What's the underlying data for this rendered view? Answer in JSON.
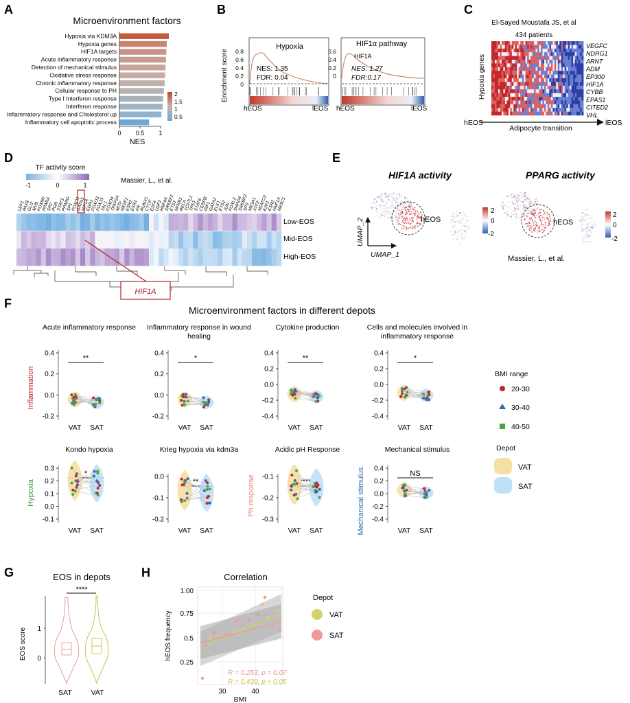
{
  "panel_letters": [
    "A",
    "B",
    "C",
    "D",
    "E",
    "F",
    "G",
    "H"
  ],
  "A": {
    "title": "Microenvironment factors",
    "xlabel": "NES",
    "legend_ticks": [
      "2",
      "1.5",
      "1",
      "0.5"
    ]
  },
  "B": {
    "ylabel": "Enrichment score",
    "left": {
      "title": "Hypoxia",
      "nes": "NES: 1.35",
      "fdr": "FDR: 0.04",
      "x_left": "hEOS",
      "x_right": "lEOS"
    },
    "right": {
      "title": "HIF1α pathway",
      "sub": "HIF1A",
      "nes": "NES: 1.27",
      "fdr": "FDR:0.17",
      "x_left": "hEOS",
      "x_right": "lEOS"
    }
  },
  "C": {
    "title": "El-Sayed Moustafa JS, et al",
    "subtitle": "434 patients",
    "ylabel": "Hypoxia genes",
    "genes": [
      "VEGFC",
      "NDRG1",
      "ARNT",
      "ADM",
      "EP300",
      "HIF1A",
      "CYBB",
      "EPAS1",
      "CITED2",
      "VHL"
    ],
    "x_left": "hEOS",
    "x_mid": "Adipocyte transition",
    "x_right": "lEOS"
  },
  "D": {
    "legend_title": "TF activity score",
    "legend_ticks": [
      "-1",
      "0",
      "1"
    ],
    "citation": "Massier, L., et al.",
    "tfs": [
      "LEF1",
      "PAX8",
      "GLI2",
      "MYB",
      "FOXM1",
      "PPARA",
      "SP2",
      "PGR",
      "STAT3",
      "PPARG",
      "SP1",
      "FOXO1",
      "GATA3",
      "HIF1A",
      "EGR1",
      "FOXO3",
      "FOXJ3",
      "TAL1",
      "FOXO4",
      "TFAP2A",
      "MITF",
      "NR2F1",
      "ESR2",
      "ESR1",
      "AR",
      "RUNX1",
      "CTCF",
      "E2F4",
      "USF2",
      "HNF4A",
      "SREBF1",
      "ETS1",
      "NFKB1",
      "RELA",
      "TCF7L2",
      "TP53",
      "STAT6",
      "CEBPB",
      "IRF1",
      "GATA2",
      "ELK1",
      "ETS2",
      "JUN",
      "FOXL2",
      "SMAD4",
      "SREBF2",
      "SP3",
      "NR3A1",
      "ATF2",
      "NFATC2",
      "E2F1",
      "ESR2",
      "HNF1A",
      "NR3C1"
    ],
    "rows": [
      "Low-EOS",
      "Mid-EOS",
      "High-EOS"
    ],
    "callout": "HIF1A"
  },
  "E": {
    "left_title": "HIF1A activity",
    "right_title": "PPARG activity",
    "cluster_label": "hEOS",
    "scale_ticks": [
      "2",
      "0",
      "-2"
    ],
    "axis_x": "UMAP_1",
    "axis_y": "UMAP_2",
    "citation": "Massier, L., et al."
  },
  "F": {
    "title": "Microenvironment factors in different depots",
    "row1_ylabel": "Inflammation",
    "row2_ylabels": [
      "Hypoxia",
      "Ph response",
      "Mechanical stimulus"
    ],
    "x_categories": [
      "VAT",
      "SAT"
    ],
    "plots": [
      {
        "title": [
          "Acute inflammatory response"
        ],
        "sig": "**",
        "ticks": [
          "0.4",
          "0.2",
          "0.0",
          "-0.2"
        ]
      },
      {
        "title": [
          "Inflammatory response in wound",
          "healing"
        ],
        "sig": "*",
        "ticks": [
          "0.4",
          "0.2",
          "0.0",
          "-0.2"
        ]
      },
      {
        "title": [
          "Cytokine production"
        ],
        "sig": "**",
        "ticks": [
          "0.4",
          "0.2",
          "0.0",
          "-0.2",
          "-0.4"
        ]
      },
      {
        "title": [
          "Cells and molecules involved in",
          "inflammatory response"
        ],
        "sig": "*",
        "ticks": [
          "0.4",
          "0.2",
          "0.0",
          "-0.2",
          "-0.4"
        ]
      },
      {
        "title": [
          "Kondo hypoxia"
        ],
        "sig": "*",
        "ticks": [
          "0.3",
          "0.2",
          "0.1",
          "0.0",
          "-0.1"
        ]
      },
      {
        "title": [
          "Krieg hypoxia via kdm3a"
        ],
        "sig": "**",
        "ticks": [
          "0.0",
          "-0.1",
          "-0.2"
        ]
      },
      {
        "title": [
          "Acidic pH Response"
        ],
        "sig": "****",
        "ticks": [
          "-0.1",
          "-0.2",
          "-0.3"
        ]
      },
      {
        "title": [
          "Mechanical stimulus"
        ],
        "sig": "NS",
        "ticks": [
          "0.4",
          "0.2",
          "0.0",
          "-0.2",
          "-0.4"
        ]
      }
    ],
    "legend_bmi_title": "BMI range",
    "legend_bmi": [
      "20-30",
      "30-40",
      "40-50"
    ],
    "legend_depot_title": "Depot",
    "legend_depot": [
      "VAT",
      "SAT"
    ]
  },
  "G": {
    "title": "EOS in depots",
    "sig": "****",
    "ylabel": "EOS score",
    "ticks": [
      "1",
      "0"
    ],
    "categories": [
      "SAT",
      "VAT"
    ]
  },
  "H": {
    "title": "Correlation",
    "ylabel": "hEOS frequency",
    "xlabel": "BMI",
    "yticks": [
      "1.00",
      "0.75",
      "0.5",
      "0.25"
    ],
    "xticks": [
      "30",
      "40"
    ],
    "stat_sat": "R = 0.253, p = 0.07",
    "stat_vat": "R = 0.439, p < 0.05",
    "legend_title": "Depot",
    "legend": [
      "VAT",
      "SAT"
    ]
  },
  "chart_data": [
    {
      "type": "bar",
      "title": "Microenvironment factors",
      "xlabel": "NES",
      "categories": [
        "Hypoxia via KDM3A",
        "Hypoxia genes",
        "HIF1A targets",
        "Acute inflammatory response",
        "Detection of mechanical stimulus",
        "Oxidative stress response",
        "Chronic inflammatory response",
        "Cellular response to PH",
        "Type I Interferon response",
        "Interferon response",
        "Inflammatory response and Cholesterol up",
        "Inflammatory cell apoptotic process"
      ],
      "values": [
        1.2,
        1.15,
        1.14,
        1.13,
        1.12,
        1.11,
        1.1,
        1.08,
        1.06,
        1.05,
        1.02,
        0.72
      ],
      "xticks": [
        "0",
        "0.5",
        "1"
      ],
      "xlim": [
        0,
        1.3
      ]
    }
  ],
  "colors": {
    "vat": "#f6dfa3",
    "sat": "#bfe0f7",
    "bmi_20_30": "#c0262d",
    "bmi_30_40": "#3a66b0",
    "bmi_40_50": "#4aa447",
    "inflammation": "#c0262d",
    "hypoxia": "#3c9a3c",
    "ph": "#e8837a",
    "mechanical": "#2a6bb0",
    "callout": "#b02020"
  }
}
